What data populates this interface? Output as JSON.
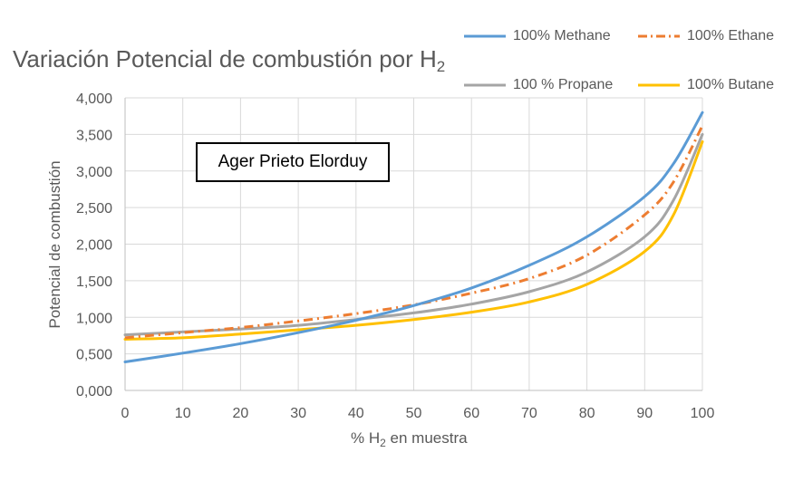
{
  "chart_data": {
    "type": "line",
    "title_main": "Variación Potencial de combustión por H",
    "title_sub": "2",
    "xlabel_prefix": "% H",
    "xlabel_sub": "2",
    "xlabel_suffix": " en muestra",
    "ylabel": "Potencial de combustión",
    "annotation": "Ager Prieto Elorduy",
    "xlim": [
      0,
      100
    ],
    "ylim": [
      0,
      4
    ],
    "x_ticks": [
      "0",
      "10",
      "20",
      "30",
      "40",
      "50",
      "60",
      "70",
      "80",
      "90",
      "100"
    ],
    "y_ticks": [
      "0,000",
      "0,500",
      "1,000",
      "1,500",
      "2,000",
      "2,500",
      "3,000",
      "3,500",
      "4,000"
    ],
    "grid": true,
    "legend_position": "top-right",
    "x": [
      0,
      10,
      20,
      30,
      40,
      50,
      60,
      70,
      80,
      90,
      95,
      100
    ],
    "series": [
      {
        "name": "100% Methane",
        "color": "#5B9BD5",
        "dash": "solid",
        "values": [
          0.39,
          0.51,
          0.64,
          0.79,
          0.96,
          1.16,
          1.4,
          1.71,
          2.1,
          2.65,
          3.1,
          3.8
        ]
      },
      {
        "name": "100% Ethane",
        "color": "#ED7D31",
        "dash": "dashdot",
        "values": [
          0.72,
          0.79,
          0.86,
          0.95,
          1.05,
          1.17,
          1.33,
          1.53,
          1.85,
          2.4,
          2.85,
          3.62
        ]
      },
      {
        "name": "100 % Propane",
        "color": "#A5A5A5",
        "dash": "solid",
        "values": [
          0.76,
          0.8,
          0.84,
          0.89,
          0.97,
          1.06,
          1.18,
          1.35,
          1.62,
          2.1,
          2.6,
          3.5
        ]
      },
      {
        "name": "100% Butane",
        "color": "#FFC000",
        "dash": "solid",
        "values": [
          0.7,
          0.72,
          0.77,
          0.83,
          0.89,
          0.97,
          1.07,
          1.21,
          1.45,
          1.9,
          2.4,
          3.4
        ]
      }
    ]
  }
}
